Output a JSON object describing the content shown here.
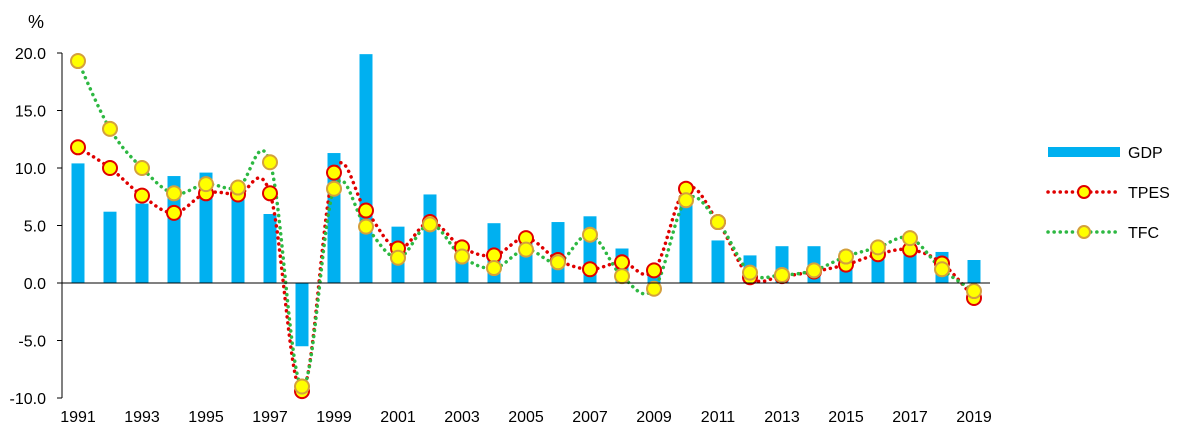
{
  "chart_data": {
    "type": "bar",
    "title": "",
    "ylabel": "%",
    "xlabel": "",
    "ylim": [
      -10.0,
      20.0
    ],
    "yticks": [
      "20.0",
      "15.0",
      "10.0",
      "5.0",
      "0.0",
      "-5.0",
      "-10.0"
    ],
    "categories": [
      "1991",
      "1992",
      "1993",
      "1994",
      "1995",
      "1996",
      "1997",
      "1998",
      "1999",
      "2000",
      "2001",
      "2002",
      "2003",
      "2004",
      "2005",
      "2006",
      "2007",
      "2008",
      "2009",
      "2010",
      "2011",
      "2012",
      "2013",
      "2014",
      "2015",
      "2016",
      "2017",
      "2018",
      "2019"
    ],
    "xtick_labels": [
      "1991",
      "1993",
      "1995",
      "1997",
      "1999",
      "2001",
      "2003",
      "2005",
      "2007",
      "2009",
      "2011",
      "2013",
      "2015",
      "2017",
      "2019"
    ],
    "legend_position": "right",
    "series": [
      {
        "name": "GDP",
        "type": "bar",
        "color": "#00B0F0",
        "values": [
          10.4,
          6.2,
          6.9,
          9.3,
          9.6,
          7.9,
          6.0,
          -5.5,
          11.3,
          19.9,
          4.9,
          7.7,
          3.1,
          5.2,
          4.3,
          5.3,
          5.8,
          3.0,
          0.8,
          6.8,
          3.7,
          2.4,
          3.2,
          3.2,
          2.8,
          2.9,
          3.2,
          2.7,
          2.0
        ]
      },
      {
        "name": "TPES",
        "type": "line",
        "line_color": "#E00000",
        "marker_fill": "#FFFF00",
        "marker_edge": "#E00000",
        "line_style": "dotted",
        "values": [
          11.8,
          10.0,
          7.6,
          6.1,
          7.8,
          7.7,
          7.8,
          -9.4,
          9.6,
          6.3,
          3.0,
          5.3,
          3.1,
          2.4,
          3.9,
          2.0,
          1.2,
          1.8,
          1.1,
          8.2,
          5.3,
          0.5,
          0.6,
          1.0,
          1.6,
          2.5,
          2.9,
          1.7,
          -1.3
        ]
      },
      {
        "name": "TFC",
        "type": "line",
        "line_color": "#2DB842",
        "marker_fill": "#FFFF00",
        "marker_edge": "#D4A03C",
        "line_style": "dotted",
        "values": [
          19.3,
          13.4,
          10.0,
          7.8,
          8.6,
          8.3,
          10.5,
          -9.0,
          8.2,
          4.9,
          2.2,
          5.1,
          2.3,
          1.3,
          2.9,
          1.8,
          4.2,
          0.6,
          -0.5,
          7.2,
          5.3,
          0.9,
          0.7,
          1.1,
          2.3,
          3.1,
          3.9,
          1.2,
          -0.7
        ]
      }
    ]
  }
}
